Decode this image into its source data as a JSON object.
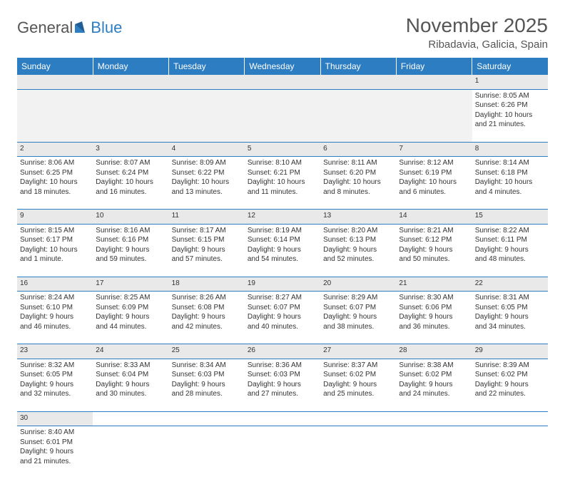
{
  "logo": {
    "part1": "General",
    "part2": "Blue"
  },
  "title": "November 2025",
  "location": "Ribadavia, Galicia, Spain",
  "colors": {
    "header_bg": "#2d7dc2",
    "row_border": "#2d7dc2",
    "daynum_bg": "#e9e9e9"
  },
  "day_headers": [
    "Sunday",
    "Monday",
    "Tuesday",
    "Wednesday",
    "Thursday",
    "Friday",
    "Saturday"
  ],
  "weeks": [
    [
      null,
      null,
      null,
      null,
      null,
      null,
      {
        "n": "1",
        "sr": "8:05 AM",
        "ss": "6:26 PM",
        "dl": "10 hours and 21 minutes."
      }
    ],
    [
      {
        "n": "2",
        "sr": "8:06 AM",
        "ss": "6:25 PM",
        "dl": "10 hours and 18 minutes."
      },
      {
        "n": "3",
        "sr": "8:07 AM",
        "ss": "6:24 PM",
        "dl": "10 hours and 16 minutes."
      },
      {
        "n": "4",
        "sr": "8:09 AM",
        "ss": "6:22 PM",
        "dl": "10 hours and 13 minutes."
      },
      {
        "n": "5",
        "sr": "8:10 AM",
        "ss": "6:21 PM",
        "dl": "10 hours and 11 minutes."
      },
      {
        "n": "6",
        "sr": "8:11 AM",
        "ss": "6:20 PM",
        "dl": "10 hours and 8 minutes."
      },
      {
        "n": "7",
        "sr": "8:12 AM",
        "ss": "6:19 PM",
        "dl": "10 hours and 6 minutes."
      },
      {
        "n": "8",
        "sr": "8:14 AM",
        "ss": "6:18 PM",
        "dl": "10 hours and 4 minutes."
      }
    ],
    [
      {
        "n": "9",
        "sr": "8:15 AM",
        "ss": "6:17 PM",
        "dl": "10 hours and 1 minute."
      },
      {
        "n": "10",
        "sr": "8:16 AM",
        "ss": "6:16 PM",
        "dl": "9 hours and 59 minutes."
      },
      {
        "n": "11",
        "sr": "8:17 AM",
        "ss": "6:15 PM",
        "dl": "9 hours and 57 minutes."
      },
      {
        "n": "12",
        "sr": "8:19 AM",
        "ss": "6:14 PM",
        "dl": "9 hours and 54 minutes."
      },
      {
        "n": "13",
        "sr": "8:20 AM",
        "ss": "6:13 PM",
        "dl": "9 hours and 52 minutes."
      },
      {
        "n": "14",
        "sr": "8:21 AM",
        "ss": "6:12 PM",
        "dl": "9 hours and 50 minutes."
      },
      {
        "n": "15",
        "sr": "8:22 AM",
        "ss": "6:11 PM",
        "dl": "9 hours and 48 minutes."
      }
    ],
    [
      {
        "n": "16",
        "sr": "8:24 AM",
        "ss": "6:10 PM",
        "dl": "9 hours and 46 minutes."
      },
      {
        "n": "17",
        "sr": "8:25 AM",
        "ss": "6:09 PM",
        "dl": "9 hours and 44 minutes."
      },
      {
        "n": "18",
        "sr": "8:26 AM",
        "ss": "6:08 PM",
        "dl": "9 hours and 42 minutes."
      },
      {
        "n": "19",
        "sr": "8:27 AM",
        "ss": "6:07 PM",
        "dl": "9 hours and 40 minutes."
      },
      {
        "n": "20",
        "sr": "8:29 AM",
        "ss": "6:07 PM",
        "dl": "9 hours and 38 minutes."
      },
      {
        "n": "21",
        "sr": "8:30 AM",
        "ss": "6:06 PM",
        "dl": "9 hours and 36 minutes."
      },
      {
        "n": "22",
        "sr": "8:31 AM",
        "ss": "6:05 PM",
        "dl": "9 hours and 34 minutes."
      }
    ],
    [
      {
        "n": "23",
        "sr": "8:32 AM",
        "ss": "6:05 PM",
        "dl": "9 hours and 32 minutes."
      },
      {
        "n": "24",
        "sr": "8:33 AM",
        "ss": "6:04 PM",
        "dl": "9 hours and 30 minutes."
      },
      {
        "n": "25",
        "sr": "8:34 AM",
        "ss": "6:03 PM",
        "dl": "9 hours and 28 minutes."
      },
      {
        "n": "26",
        "sr": "8:36 AM",
        "ss": "6:03 PM",
        "dl": "9 hours and 27 minutes."
      },
      {
        "n": "27",
        "sr": "8:37 AM",
        "ss": "6:02 PM",
        "dl": "9 hours and 25 minutes."
      },
      {
        "n": "28",
        "sr": "8:38 AM",
        "ss": "6:02 PM",
        "dl": "9 hours and 24 minutes."
      },
      {
        "n": "29",
        "sr": "8:39 AM",
        "ss": "6:02 PM",
        "dl": "9 hours and 22 minutes."
      }
    ],
    [
      {
        "n": "30",
        "sr": "8:40 AM",
        "ss": "6:01 PM",
        "dl": "9 hours and 21 minutes."
      },
      null,
      null,
      null,
      null,
      null,
      null
    ]
  ],
  "labels": {
    "sunrise": "Sunrise:",
    "sunset": "Sunset:",
    "daylight": "Daylight:"
  }
}
